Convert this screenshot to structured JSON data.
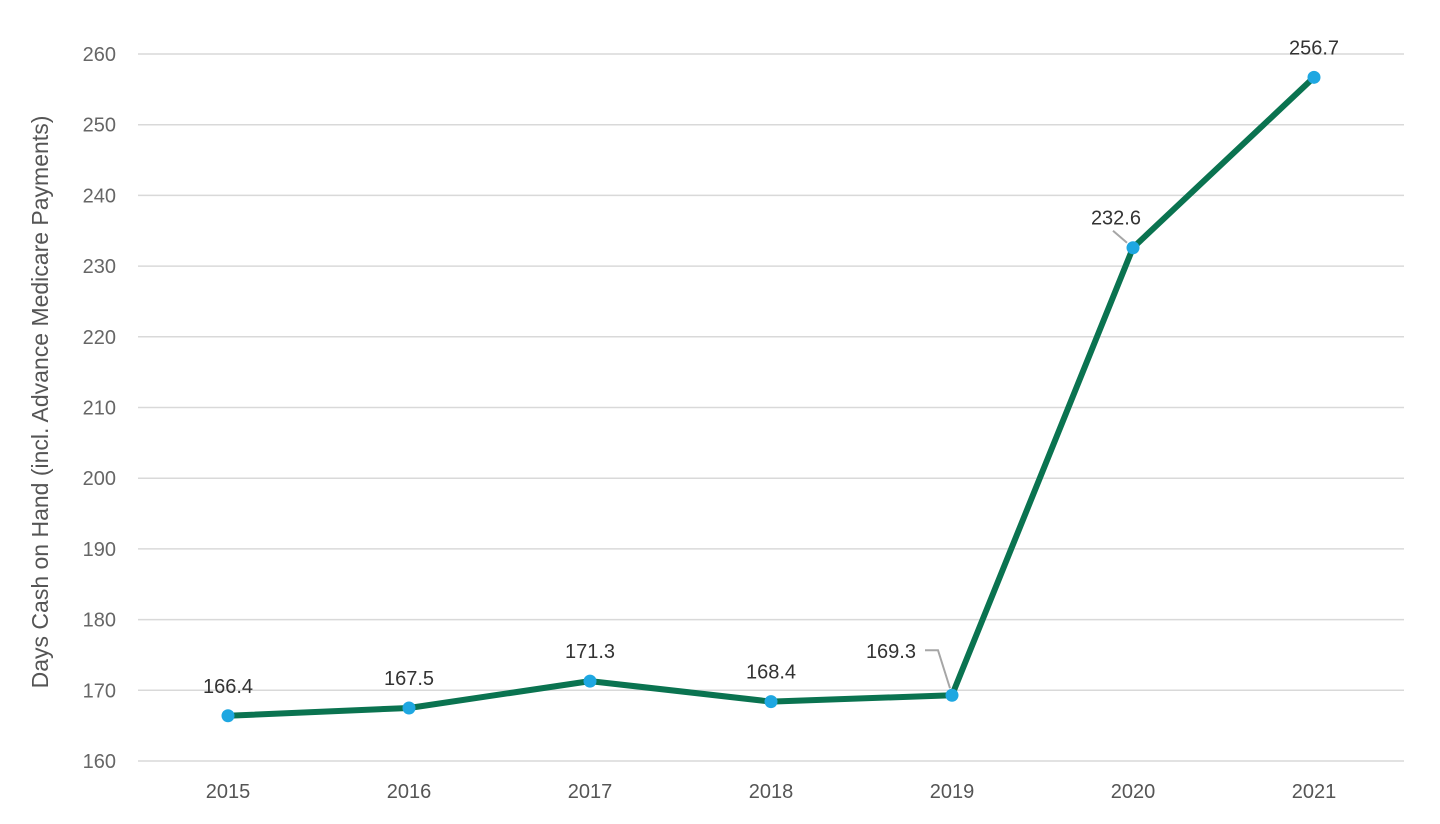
{
  "chart_data": {
    "type": "line",
    "title": "",
    "xlabel": "",
    "ylabel": "Days Cash on Hand (incl. Advance Medicare Payments)",
    "categories": [
      "2015",
      "2016",
      "2017",
      "2018",
      "2019",
      "2020",
      "2021"
    ],
    "series": [
      {
        "values": [
          166.4,
          167.5,
          171.3,
          168.4,
          169.3,
          232.6,
          256.7
        ],
        "data_labels": [
          "166.4",
          "167.5",
          "171.3",
          "168.4",
          "169.3",
          "232.6",
          "256.7"
        ]
      }
    ],
    "ylim": [
      160,
      260
    ],
    "yticks": [
      "160",
      "170",
      "180",
      "190",
      "200",
      "210",
      "220",
      "230",
      "240",
      "250",
      "260"
    ],
    "grid": "horizontal",
    "legend": "none",
    "colors": {
      "line": "#0a7350",
      "marker": "#1ea7e1",
      "grid": "#d9d9d9"
    }
  }
}
